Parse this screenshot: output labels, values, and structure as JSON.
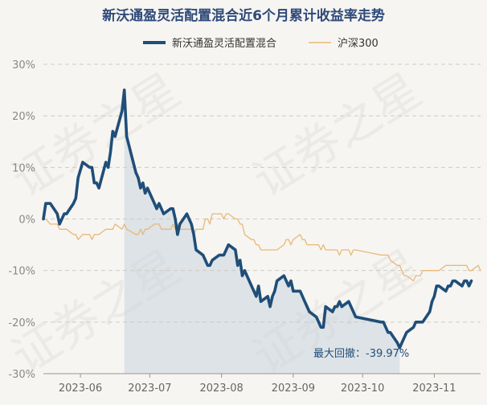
{
  "chart_data": {
    "type": "line",
    "title": "新沃通盈灵活配置混合近6个月累计收益率走势",
    "watermark": "证券之星",
    "ylim": [
      -30,
      30
    ],
    "y_ticks": [
      30,
      20,
      10,
      0,
      -10,
      -20,
      -30
    ],
    "y_tick_labels": [
      "30%",
      "20%",
      "10%",
      "0%",
      "-10%",
      "-20%",
      "-30%"
    ],
    "x_ticks": [
      "2023-06-01",
      "2023-07-01",
      "2023-08-01",
      "2023-09-01",
      "2023-10-01",
      "2023-11-01"
    ],
    "x_tick_labels": [
      "2023-06",
      "2023-07",
      "2023-08",
      "2023-09",
      "2023-10",
      "2023-11"
    ],
    "x_range": [
      "2023-05-16",
      "2023-11-21"
    ],
    "grid": "horizontal dashed",
    "legend_position": "top-center",
    "colors": {
      "fund": "#1f4e79",
      "index": "#e8b87a",
      "drawdown_fill": "#c9d3dc",
      "axis_text": "#888888",
      "title": "#2e4a7a"
    },
    "series": [
      {
        "name": "新沃通盈灵活配置混合",
        "color": "#1f4e79",
        "points": [
          [
            "2023-05-16",
            0
          ],
          [
            "2023-05-17",
            3
          ],
          [
            "2023-05-19",
            3
          ],
          [
            "2023-05-22",
            1
          ],
          [
            "2023-05-23",
            -1
          ],
          [
            "2023-05-25",
            1
          ],
          [
            "2023-05-26",
            1
          ],
          [
            "2023-05-29",
            3
          ],
          [
            "2023-05-30",
            4
          ],
          [
            "2023-05-31",
            8
          ],
          [
            "2023-06-02",
            11
          ],
          [
            "2023-06-05",
            10
          ],
          [
            "2023-06-06",
            10
          ],
          [
            "2023-06-07",
            7
          ],
          [
            "2023-06-08",
            7
          ],
          [
            "2023-06-09",
            6
          ],
          [
            "2023-06-12",
            11
          ],
          [
            "2023-06-13",
            10
          ],
          [
            "2023-06-14",
            13
          ],
          [
            "2023-06-15",
            17
          ],
          [
            "2023-06-16",
            16
          ],
          [
            "2023-06-19",
            21
          ],
          [
            "2023-06-20",
            25
          ],
          [
            "2023-06-21",
            16
          ],
          [
            "2023-06-25",
            9
          ],
          [
            "2023-06-26",
            8
          ],
          [
            "2023-06-27",
            6
          ],
          [
            "2023-06-28",
            7
          ],
          [
            "2023-06-29",
            5
          ],
          [
            "2023-06-30",
            6
          ],
          [
            "2023-07-03",
            3
          ],
          [
            "2023-07-04",
            2
          ],
          [
            "2023-07-05",
            3
          ],
          [
            "2023-07-06",
            2
          ],
          [
            "2023-07-07",
            1
          ],
          [
            "2023-07-10",
            2
          ],
          [
            "2023-07-11",
            2
          ],
          [
            "2023-07-12",
            0
          ],
          [
            "2023-07-13",
            -3
          ],
          [
            "2023-07-14",
            -1
          ],
          [
            "2023-07-17",
            1
          ],
          [
            "2023-07-18",
            0
          ],
          [
            "2023-07-19",
            -1
          ],
          [
            "2023-07-20",
            -3
          ],
          [
            "2023-07-21",
            -6
          ],
          [
            "2023-07-24",
            -7
          ],
          [
            "2023-07-25",
            -8
          ],
          [
            "2023-07-26",
            -9
          ],
          [
            "2023-07-27",
            -9
          ],
          [
            "2023-07-28",
            -8
          ],
          [
            "2023-07-31",
            -7
          ],
          [
            "2023-08-01",
            -7
          ],
          [
            "2023-08-02",
            -7
          ],
          [
            "2023-08-03",
            -6
          ],
          [
            "2023-08-04",
            -5
          ],
          [
            "2023-08-07",
            -6
          ],
          [
            "2023-08-08",
            -9
          ],
          [
            "2023-08-09",
            -8
          ],
          [
            "2023-08-10",
            -11
          ],
          [
            "2023-08-11",
            -10
          ],
          [
            "2023-08-14",
            -13
          ],
          [
            "2023-08-15",
            -14
          ],
          [
            "2023-08-16",
            -15
          ],
          [
            "2023-08-17",
            -13
          ],
          [
            "2023-08-18",
            -16
          ],
          [
            "2023-08-21",
            -15
          ],
          [
            "2023-08-22",
            -17
          ],
          [
            "2023-08-23",
            -15
          ],
          [
            "2023-08-24",
            -14
          ],
          [
            "2023-08-25",
            -12
          ],
          [
            "2023-08-28",
            -11
          ],
          [
            "2023-08-29",
            -12
          ],
          [
            "2023-08-30",
            -13
          ],
          [
            "2023-08-31",
            -12
          ],
          [
            "2023-09-01",
            -14
          ],
          [
            "2023-09-04",
            -14
          ],
          [
            "2023-09-05",
            -15
          ],
          [
            "2023-09-06",
            -16
          ],
          [
            "2023-09-07",
            -17
          ],
          [
            "2023-09-08",
            -18
          ],
          [
            "2023-09-11",
            -19
          ],
          [
            "2023-09-12",
            -20
          ],
          [
            "2023-09-13",
            -21
          ],
          [
            "2023-09-14",
            -21
          ],
          [
            "2023-09-15",
            -17
          ],
          [
            "2023-09-18",
            -18
          ],
          [
            "2023-09-19",
            -17
          ],
          [
            "2023-09-20",
            -17
          ],
          [
            "2023-09-21",
            -16
          ],
          [
            "2023-09-22",
            -17
          ],
          [
            "2023-09-25",
            -16
          ],
          [
            "2023-09-26",
            -17
          ],
          [
            "2023-09-27",
            -18
          ],
          [
            "2023-09-28",
            -19
          ],
          [
            "2023-10-09",
            -20
          ],
          [
            "2023-10-10",
            -20
          ],
          [
            "2023-10-11",
            -21
          ],
          [
            "2023-10-12",
            -22
          ],
          [
            "2023-10-13",
            -22
          ],
          [
            "2023-10-16",
            -24
          ],
          [
            "2023-10-17",
            -25
          ],
          [
            "2023-10-18",
            -24
          ],
          [
            "2023-10-19",
            -23
          ],
          [
            "2023-10-20",
            -22
          ],
          [
            "2023-10-23",
            -21
          ],
          [
            "2023-10-24",
            -20
          ],
          [
            "2023-10-25",
            -20
          ],
          [
            "2023-10-26",
            -20
          ],
          [
            "2023-10-27",
            -20
          ],
          [
            "2023-10-30",
            -18
          ],
          [
            "2023-10-31",
            -16
          ],
          [
            "2023-11-01",
            -15
          ],
          [
            "2023-11-02",
            -13
          ],
          [
            "2023-11-03",
            -13
          ],
          [
            "2023-11-06",
            -14
          ],
          [
            "2023-11-07",
            -13
          ],
          [
            "2023-11-08",
            -13
          ],
          [
            "2023-11-09",
            -12
          ],
          [
            "2023-11-10",
            -12
          ],
          [
            "2023-11-13",
            -13
          ],
          [
            "2023-11-14",
            -12
          ],
          [
            "2023-11-15",
            -12
          ],
          [
            "2023-11-16",
            -13
          ],
          [
            "2023-11-17",
            -12
          ]
        ]
      },
      {
        "name": "沪深300",
        "color": "#e8b87a",
        "points": [
          [
            "2023-05-16",
            0
          ],
          [
            "2023-05-17",
            0
          ],
          [
            "2023-05-19",
            -1
          ],
          [
            "2023-05-22",
            -1
          ],
          [
            "2023-05-23",
            -2
          ],
          [
            "2023-05-25",
            -2
          ],
          [
            "2023-05-26",
            -2
          ],
          [
            "2023-05-29",
            -3
          ],
          [
            "2023-05-30",
            -3
          ],
          [
            "2023-05-31",
            -4
          ],
          [
            "2023-06-02",
            -3
          ],
          [
            "2023-06-05",
            -3
          ],
          [
            "2023-06-06",
            -4
          ],
          [
            "2023-06-07",
            -3
          ],
          [
            "2023-06-08",
            -3
          ],
          [
            "2023-06-09",
            -3
          ],
          [
            "2023-06-12",
            -2
          ],
          [
            "2023-06-13",
            -2
          ],
          [
            "2023-06-14",
            -2
          ],
          [
            "2023-06-15",
            -2
          ],
          [
            "2023-06-16",
            -1
          ],
          [
            "2023-06-19",
            -2
          ],
          [
            "2023-06-20",
            -1
          ],
          [
            "2023-06-21",
            -2
          ],
          [
            "2023-06-25",
            -3
          ],
          [
            "2023-06-26",
            -3
          ],
          [
            "2023-06-27",
            -2
          ],
          [
            "2023-06-28",
            -3
          ],
          [
            "2023-06-29",
            -2
          ],
          [
            "2023-06-30",
            -2
          ],
          [
            "2023-07-03",
            -1
          ],
          [
            "2023-07-04",
            -1
          ],
          [
            "2023-07-05",
            -1
          ],
          [
            "2023-07-06",
            -2
          ],
          [
            "2023-07-07",
            -2
          ],
          [
            "2023-07-10",
            -2
          ],
          [
            "2023-07-11",
            -1
          ],
          [
            "2023-07-12",
            -2
          ],
          [
            "2023-07-13",
            -1
          ],
          [
            "2023-07-14",
            -2
          ],
          [
            "2023-07-17",
            -2
          ],
          [
            "2023-07-18",
            -2
          ],
          [
            "2023-07-19",
            -2
          ],
          [
            "2023-07-20",
            -3
          ],
          [
            "2023-07-21",
            -2
          ],
          [
            "2023-07-24",
            -2
          ],
          [
            "2023-07-25",
            0
          ],
          [
            "2023-07-26",
            0
          ],
          [
            "2023-07-27",
            -1
          ],
          [
            "2023-07-28",
            1
          ],
          [
            "2023-07-31",
            1
          ],
          [
            "2023-08-01",
            1
          ],
          [
            "2023-08-02",
            0
          ],
          [
            "2023-08-03",
            1
          ],
          [
            "2023-08-04",
            1
          ],
          [
            "2023-08-07",
            0
          ],
          [
            "2023-08-08",
            0
          ],
          [
            "2023-08-09",
            -1
          ],
          [
            "2023-08-10",
            -1
          ],
          [
            "2023-08-11",
            -3
          ],
          [
            "2023-08-14",
            -4
          ],
          [
            "2023-08-15",
            -4
          ],
          [
            "2023-08-16",
            -5
          ],
          [
            "2023-08-17",
            -5
          ],
          [
            "2023-08-18",
            -6
          ],
          [
            "2023-08-21",
            -6
          ],
          [
            "2023-08-22",
            -6
          ],
          [
            "2023-08-23",
            -6
          ],
          [
            "2023-08-24",
            -6
          ],
          [
            "2023-08-25",
            -6
          ],
          [
            "2023-08-28",
            -5
          ],
          [
            "2023-08-29",
            -4
          ],
          [
            "2023-08-30",
            -4
          ],
          [
            "2023-08-31",
            -5
          ],
          [
            "2023-09-01",
            -4
          ],
          [
            "2023-09-04",
            -3
          ],
          [
            "2023-09-05",
            -4
          ],
          [
            "2023-09-06",
            -4
          ],
          [
            "2023-09-07",
            -5
          ],
          [
            "2023-09-08",
            -5
          ],
          [
            "2023-09-11",
            -5
          ],
          [
            "2023-09-12",
            -5
          ],
          [
            "2023-09-13",
            -6
          ],
          [
            "2023-09-14",
            -5
          ],
          [
            "2023-09-15",
            -6
          ],
          [
            "2023-09-18",
            -6
          ],
          [
            "2023-09-19",
            -6
          ],
          [
            "2023-09-20",
            -6
          ],
          [
            "2023-09-21",
            -7
          ],
          [
            "2023-09-22",
            -6
          ],
          [
            "2023-09-25",
            -6
          ],
          [
            "2023-09-26",
            -7
          ],
          [
            "2023-09-27",
            -6
          ],
          [
            "2023-09-28",
            -6
          ],
          [
            "2023-10-09",
            -7
          ],
          [
            "2023-10-10",
            -7
          ],
          [
            "2023-10-11",
            -7
          ],
          [
            "2023-10-12",
            -7
          ],
          [
            "2023-10-13",
            -8
          ],
          [
            "2023-10-16",
            -9
          ],
          [
            "2023-10-17",
            -9
          ],
          [
            "2023-10-18",
            -10
          ],
          [
            "2023-10-19",
            -11
          ],
          [
            "2023-10-20",
            -11
          ],
          [
            "2023-10-23",
            -12
          ],
          [
            "2023-10-24",
            -11
          ],
          [
            "2023-10-25",
            -11
          ],
          [
            "2023-10-26",
            -11
          ],
          [
            "2023-10-27",
            -10
          ],
          [
            "2023-10-30",
            -10
          ],
          [
            "2023-10-31",
            -10
          ],
          [
            "2023-11-01",
            -10
          ],
          [
            "2023-11-02",
            -10
          ],
          [
            "2023-11-03",
            -10
          ],
          [
            "2023-11-06",
            -9
          ],
          [
            "2023-11-07",
            -9
          ],
          [
            "2023-11-08",
            -9
          ],
          [
            "2023-11-09",
            -9
          ],
          [
            "2023-11-10",
            -9
          ],
          [
            "2023-11-13",
            -9
          ],
          [
            "2023-11-14",
            -9
          ],
          [
            "2023-11-15",
            -9
          ],
          [
            "2023-11-16",
            -10
          ],
          [
            "2023-11-17",
            -10
          ],
          [
            "2023-11-20",
            -9
          ],
          [
            "2023-11-21",
            -10
          ]
        ]
      }
    ],
    "drawdown": {
      "start": "2023-06-20",
      "end": "2023-10-17",
      "label": "最大回撤：-39.97%"
    }
  }
}
